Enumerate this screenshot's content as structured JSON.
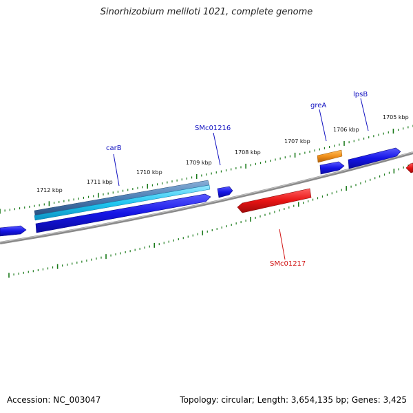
{
  "title": "Sinorhizobium meliloti 1021, complete genome",
  "footer": {
    "accession": "Accession: NC_003047",
    "summary": "Topology: circular; Length: 3,654,135 bp; Genes: 3,425"
  },
  "colors": {
    "backbone": "#8a8a8a",
    "tick": "#1a7a1a",
    "forward_gene": "#1515e6",
    "reverse_gene": "#e81414",
    "label_forward": "#1010c0",
    "label_reverse": "#d01010",
    "highlight_orange": "#f0901a",
    "highlight_cyan": "#22c8f2",
    "highlight_steel": "#4b7eb4"
  },
  "kbp_labels": [
    "1712 kbp",
    "1711 kbp",
    "1710 kbp",
    "1709 kbp",
    "1708 kbp",
    "1707 kbp",
    "1706 kbp",
    "1705 kbp"
  ],
  "gene_labels": {
    "carB": "carB",
    "SMc01216": "SMc01216",
    "greA": "greA",
    "lpsB": "lpsB",
    "SMc01217": "SMc01217"
  }
}
